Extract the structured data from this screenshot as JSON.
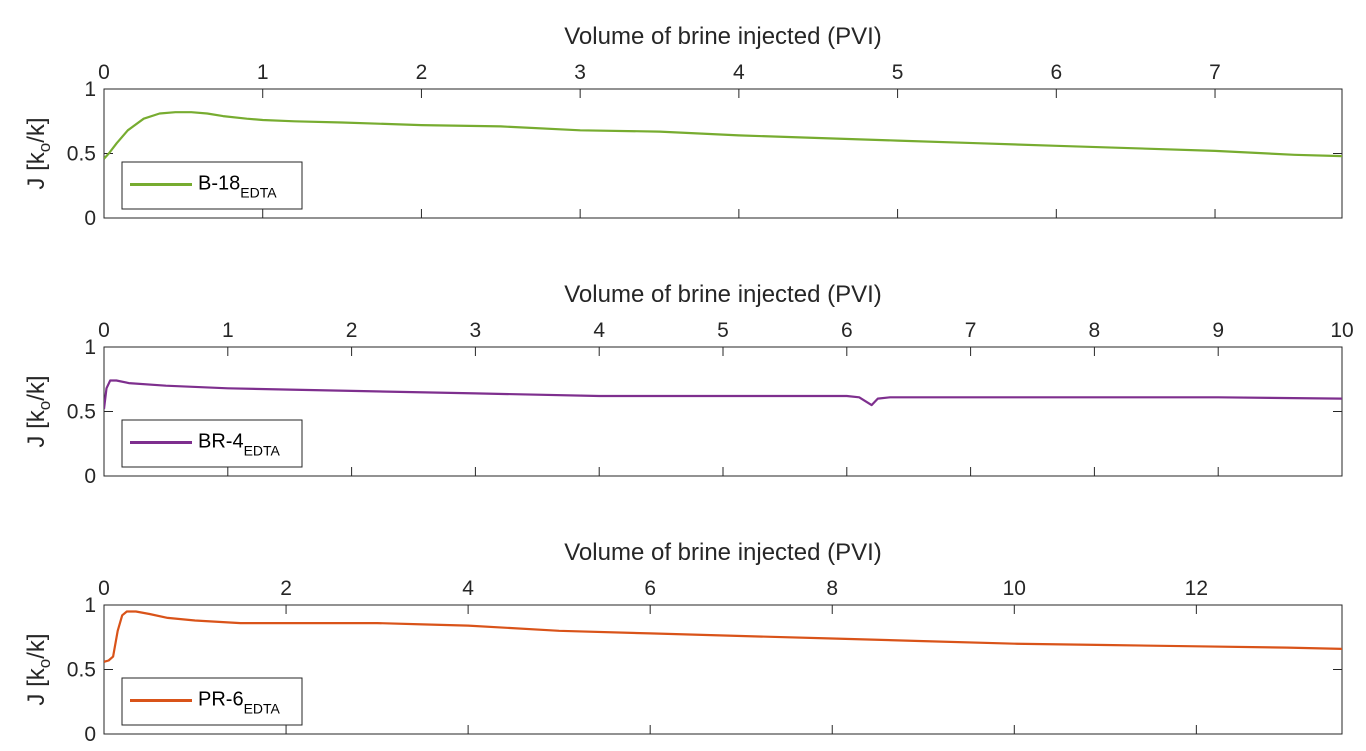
{
  "chart_data": [
    {
      "type": "line",
      "xlabel": "Volume of brine injected (PVI)",
      "ylabel_main": "J [k",
      "ylabel_sub": "o",
      "ylabel_tail": "/k]",
      "xlim": [
        0,
        7.8
      ],
      "ylim": [
        0,
        1
      ],
      "xticks": [
        "0",
        "1",
        "2",
        "3",
        "4",
        "5",
        "6",
        "7"
      ],
      "yticks": [
        "0",
        "0.5",
        "1"
      ],
      "legend_location": "bottom-left",
      "series": [
        {
          "name": "B-18",
          "name_sub": "EDTA",
          "color": "#77AC30",
          "x": [
            0,
            0.03,
            0.08,
            0.15,
            0.25,
            0.35,
            0.45,
            0.55,
            0.65,
            0.75,
            0.9,
            1.0,
            1.2,
            1.5,
            2.0,
            2.5,
            3.0,
            3.5,
            4.0,
            4.5,
            5.0,
            5.5,
            6.0,
            6.5,
            7.0,
            7.5,
            7.8
          ],
          "y": [
            0.46,
            0.5,
            0.58,
            0.68,
            0.77,
            0.81,
            0.82,
            0.82,
            0.81,
            0.79,
            0.77,
            0.76,
            0.75,
            0.74,
            0.72,
            0.71,
            0.68,
            0.67,
            0.64,
            0.62,
            0.6,
            0.58,
            0.56,
            0.54,
            0.52,
            0.49,
            0.48
          ]
        }
      ]
    },
    {
      "type": "line",
      "xlabel": "Volume of brine injected (PVI)",
      "ylabel_main": "J [k",
      "ylabel_sub": "o",
      "ylabel_tail": "/k]",
      "xlim": [
        0,
        10
      ],
      "ylim": [
        0,
        1
      ],
      "xticks": [
        "0",
        "1",
        "2",
        "3",
        "4",
        "5",
        "6",
        "7",
        "8",
        "9",
        "10"
      ],
      "yticks": [
        "0",
        "0.5",
        "1"
      ],
      "legend_location": "bottom-left",
      "series": [
        {
          "name": "BR-4",
          "name_sub": "EDTA",
          "color": "#7E2F8E",
          "x": [
            0,
            0.02,
            0.05,
            0.1,
            0.2,
            0.5,
            1.0,
            1.5,
            2.0,
            3.0,
            4.0,
            5.0,
            6.0,
            6.1,
            6.15,
            6.2,
            6.25,
            6.35,
            7.0,
            8.0,
            9.0,
            10.0
          ],
          "y": [
            0.52,
            0.68,
            0.74,
            0.74,
            0.72,
            0.7,
            0.68,
            0.67,
            0.66,
            0.64,
            0.62,
            0.62,
            0.62,
            0.61,
            0.58,
            0.55,
            0.6,
            0.61,
            0.61,
            0.61,
            0.61,
            0.6
          ]
        }
      ]
    },
    {
      "type": "line",
      "xlabel": "Volume of brine injected (PVI)",
      "ylabel_main": "J [k",
      "ylabel_sub": "o",
      "ylabel_tail": "/k]",
      "xlim": [
        0,
        13.6
      ],
      "ylim": [
        0,
        1
      ],
      "xticks": [
        "0",
        "2",
        "4",
        "6",
        "8",
        "10",
        "12"
      ],
      "yticks": [
        "0",
        "0.5",
        "1"
      ],
      "legend_location": "bottom-left",
      "series": [
        {
          "name": "PR-6",
          "name_sub": "EDTA",
          "color": "#D95319",
          "x": [
            0,
            0.05,
            0.1,
            0.15,
            0.2,
            0.25,
            0.35,
            0.5,
            0.7,
            1.0,
            1.5,
            2.0,
            2.5,
            3.0,
            3.5,
            4.0,
            5.0,
            6.0,
            7.0,
            8.0,
            9.0,
            10.0,
            11.0,
            12.0,
            13.0,
            13.6
          ],
          "y": [
            0.56,
            0.57,
            0.6,
            0.8,
            0.92,
            0.95,
            0.95,
            0.93,
            0.9,
            0.88,
            0.86,
            0.86,
            0.86,
            0.86,
            0.85,
            0.84,
            0.8,
            0.78,
            0.76,
            0.74,
            0.72,
            0.7,
            0.69,
            0.68,
            0.67,
            0.66
          ]
        }
      ]
    }
  ]
}
